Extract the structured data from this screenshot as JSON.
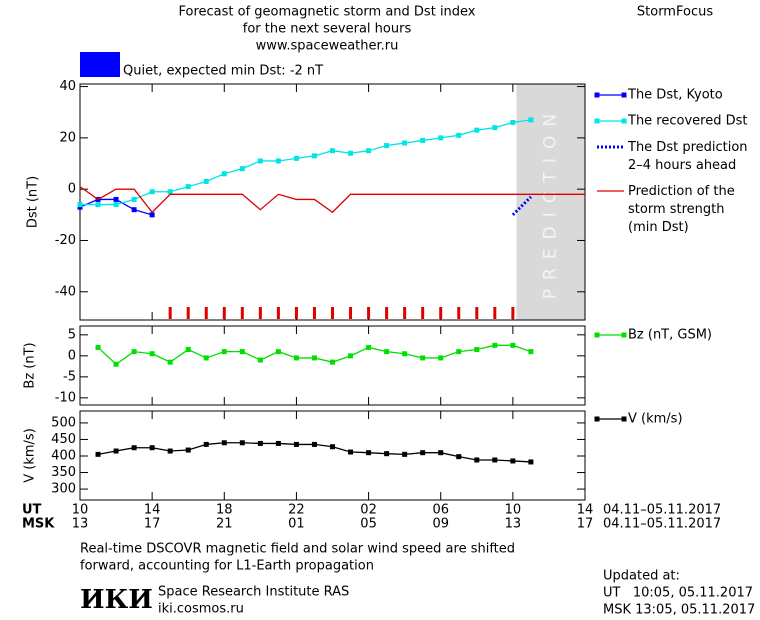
{
  "header": {
    "title_lines": [
      "Forecast of geomagnetic storm and Dst index",
      "for the next several hours",
      "www.spaceweather.ru"
    ],
    "brand": "StormFocus"
  },
  "status": {
    "text": "Quiet, expected min Dst: -2 nT",
    "color": "#0000ff"
  },
  "time_axis": {
    "xlim": [
      0,
      28
    ],
    "ut_label": "UT",
    "msk_label": "MSK",
    "ut_ticks": [
      {
        "value": 0,
        "label": "10"
      },
      {
        "value": 4,
        "label": "14"
      },
      {
        "value": 8,
        "label": "18"
      },
      {
        "value": 12,
        "label": "22"
      },
      {
        "value": 16,
        "label": "02"
      },
      {
        "value": 20,
        "label": "06"
      },
      {
        "value": 24,
        "label": "10"
      },
      {
        "value": 28,
        "label": "14"
      }
    ],
    "msk_ticks": [
      {
        "value": 0,
        "label": "13"
      },
      {
        "value": 4,
        "label": "17"
      },
      {
        "value": 8,
        "label": "21"
      },
      {
        "value": 12,
        "label": "01"
      },
      {
        "value": 16,
        "label": "05"
      },
      {
        "value": 20,
        "label": "09"
      },
      {
        "value": 24,
        "label": "13"
      },
      {
        "value": 28,
        "label": "17"
      }
    ],
    "ut_range": "04.11–05.11.2017",
    "msk_range": "04.11–05.11.2017"
  },
  "chart_data": [
    {
      "type": "line",
      "y_label": "Dst (nT)",
      "xlim": [
        0,
        28
      ],
      "ylim": [
        -51,
        41
      ],
      "yticks": [
        -40,
        -20,
        0,
        20,
        40
      ],
      "prediction_start": 24.2,
      "prediction_label": "PREDICTION",
      "storm_ticks": [
        5,
        6,
        7,
        8,
        9,
        10,
        11,
        12,
        13,
        14,
        15,
        16,
        17,
        18,
        19,
        20,
        21,
        22,
        23,
        24
      ],
      "storm_tick_color": "#e00000",
      "series": [
        {
          "name": "The Dst, Kyoto",
          "color": "#0000ff",
          "style": "solid",
          "marker": true,
          "x": [
            0,
            1,
            2,
            3,
            4
          ],
          "values": [
            -7,
            -4,
            -4,
            -8,
            -10
          ]
        },
        {
          "name": "The recovered Dst",
          "color": "#00e5e5",
          "style": "solid",
          "marker": true,
          "x": [
            0,
            1,
            2,
            3,
            4,
            5,
            6,
            7,
            8,
            9,
            10,
            11,
            12,
            13,
            14,
            15,
            16,
            17,
            18,
            19,
            20,
            21,
            22,
            23,
            24,
            25
          ],
          "values": [
            -6,
            -6,
            -6,
            -4,
            -1,
            -1,
            1,
            3,
            6,
            8,
            11,
            11,
            12,
            13,
            15,
            14,
            15,
            17,
            18,
            19,
            20,
            21,
            23,
            24,
            26,
            27
          ]
        },
        {
          "name": "The Dst prediction\n2–4 hours ahead",
          "color": "#0000ff",
          "style": "dotted",
          "marker": false,
          "x": [
            24,
            25
          ],
          "values": [
            -10,
            -3
          ]
        },
        {
          "name": "Prediction of the\nstorm strength\n(min Dst)",
          "color": "#e00000",
          "style": "solid",
          "marker": false,
          "x": [
            0,
            1,
            2,
            3,
            4,
            5,
            6,
            7,
            8,
            9,
            10,
            11,
            12,
            13,
            14,
            15,
            16,
            17,
            18,
            19,
            20,
            21,
            22,
            23,
            24,
            25,
            26,
            27,
            28
          ],
          "values": [
            1,
            -4,
            0,
            0,
            -9,
            -2,
            -2,
            -2,
            -2,
            -2,
            -8,
            -2,
            -4,
            -4,
            -9,
            -2,
            -2,
            -2,
            -2,
            -2,
            -2,
            -2,
            -2,
            -2,
            -2,
            -2,
            -2,
            -2,
            -2
          ]
        }
      ]
    },
    {
      "type": "line",
      "y_label": "Bz (nT)",
      "xlim": [
        0,
        28
      ],
      "ylim": [
        -11.7,
        7.1
      ],
      "yticks": [
        -10,
        -5,
        0,
        5
      ],
      "series": [
        {
          "name": "Bz (nT, GSM)",
          "color": "#00e000",
          "style": "solid",
          "marker": true,
          "x": [
            1,
            2,
            3,
            4,
            5,
            6,
            7,
            8,
            9,
            10,
            11,
            12,
            13,
            14,
            15,
            16,
            17,
            18,
            19,
            20,
            21,
            22,
            23,
            24,
            25
          ],
          "values": [
            2,
            -2,
            1,
            0.5,
            -1.5,
            1.5,
            -0.5,
            1,
            1,
            -1,
            1,
            -0.5,
            -0.5,
            -1.5,
            0,
            2,
            1,
            0.5,
            -0.5,
            -0.5,
            1,
            1.5,
            2.5,
            2.5,
            1
          ]
        }
      ]
    },
    {
      "type": "line",
      "y_label": "V (km/s)",
      "xlim": [
        0,
        28
      ],
      "ylim": [
        267,
        536
      ],
      "yticks": [
        300,
        350,
        400,
        450,
        500
      ],
      "series": [
        {
          "name": "V (km/s)",
          "color": "#000000",
          "style": "solid",
          "marker": true,
          "x": [
            1,
            2,
            3,
            4,
            5,
            6,
            7,
            8,
            9,
            10,
            11,
            12,
            13,
            14,
            15,
            16,
            17,
            18,
            19,
            20,
            21,
            22,
            23,
            24,
            25
          ],
          "values": [
            405,
            415,
            425,
            425,
            415,
            418,
            435,
            440,
            440,
            438,
            438,
            435,
            435,
            428,
            412,
            410,
            407,
            405,
            410,
            410,
            398,
            388,
            388,
            385,
            382
          ]
        }
      ]
    }
  ],
  "footer": {
    "note_lines": [
      "Real-time DSCOVR magnetic field and solar wind speed are shifted",
      "forward, accounting for L1-Earth propagation"
    ],
    "logo": "ИКИ",
    "institute": "Space Research Institute RAS",
    "site": "iki.cosmos.ru",
    "updated_label": "Updated at:",
    "updated_ut": "UT   10:05, 05.11.2017",
    "updated_msk": "MSK 13:05, 05.11.2017"
  }
}
